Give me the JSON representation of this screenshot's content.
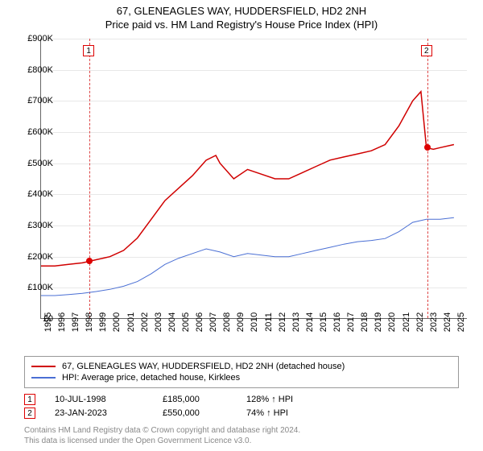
{
  "title": {
    "line1": "67, GLENEAGLES WAY, HUDDERSFIELD, HD2 2NH",
    "line2": "Price paid vs. HM Land Registry's House Price Index (HPI)"
  },
  "chart": {
    "type": "line",
    "x_range": [
      1995,
      2026
    ],
    "y_range": [
      0,
      900000
    ],
    "y_ticks": [
      0,
      100000,
      200000,
      300000,
      400000,
      500000,
      600000,
      700000,
      800000,
      900000
    ],
    "y_tick_labels": [
      "£0",
      "£100K",
      "£200K",
      "£300K",
      "£400K",
      "£500K",
      "£600K",
      "£700K",
      "£800K",
      "£900K"
    ],
    "x_ticks": [
      1995,
      1996,
      1997,
      1998,
      1999,
      2000,
      2001,
      2002,
      2003,
      2004,
      2005,
      2006,
      2007,
      2008,
      2009,
      2010,
      2011,
      2012,
      2013,
      2014,
      2015,
      2016,
      2017,
      2018,
      2019,
      2020,
      2021,
      2022,
      2023,
      2024,
      2025
    ],
    "grid_color": "#e8e8e8",
    "background_color": "#ffffff",
    "series": [
      {
        "name": "property",
        "label": "67, GLENEAGLES WAY, HUDDERSFIELD, HD2 2NH (detached house)",
        "color": "#d00000",
        "width": 1.5,
        "data": [
          [
            1995,
            170000
          ],
          [
            1996,
            170000
          ],
          [
            1997,
            175000
          ],
          [
            1998,
            180000
          ],
          [
            1998.5,
            185000
          ],
          [
            1999,
            190000
          ],
          [
            2000,
            200000
          ],
          [
            2001,
            220000
          ],
          [
            2002,
            260000
          ],
          [
            2003,
            320000
          ],
          [
            2004,
            380000
          ],
          [
            2005,
            420000
          ],
          [
            2006,
            460000
          ],
          [
            2007,
            510000
          ],
          [
            2007.7,
            525000
          ],
          [
            2008,
            500000
          ],
          [
            2009,
            450000
          ],
          [
            2010,
            480000
          ],
          [
            2011,
            465000
          ],
          [
            2012,
            450000
          ],
          [
            2013,
            450000
          ],
          [
            2014,
            470000
          ],
          [
            2015,
            490000
          ],
          [
            2016,
            510000
          ],
          [
            2017,
            520000
          ],
          [
            2018,
            530000
          ],
          [
            2019,
            540000
          ],
          [
            2020,
            560000
          ],
          [
            2021,
            620000
          ],
          [
            2022,
            700000
          ],
          [
            2022.6,
            730000
          ],
          [
            2023,
            550000
          ],
          [
            2023.5,
            545000
          ],
          [
            2024,
            550000
          ],
          [
            2025,
            560000
          ]
        ]
      },
      {
        "name": "hpi",
        "label": "HPI: Average price, detached house, Kirklees",
        "color": "#4a6fd4",
        "width": 1,
        "data": [
          [
            1995,
            75000
          ],
          [
            1996,
            75000
          ],
          [
            1997,
            78000
          ],
          [
            1998,
            82000
          ],
          [
            1999,
            88000
          ],
          [
            2000,
            95000
          ],
          [
            2001,
            105000
          ],
          [
            2002,
            120000
          ],
          [
            2003,
            145000
          ],
          [
            2004,
            175000
          ],
          [
            2005,
            195000
          ],
          [
            2006,
            210000
          ],
          [
            2007,
            225000
          ],
          [
            2008,
            215000
          ],
          [
            2009,
            200000
          ],
          [
            2010,
            210000
          ],
          [
            2011,
            205000
          ],
          [
            2012,
            200000
          ],
          [
            2013,
            200000
          ],
          [
            2014,
            210000
          ],
          [
            2015,
            220000
          ],
          [
            2016,
            230000
          ],
          [
            2017,
            240000
          ],
          [
            2018,
            248000
          ],
          [
            2019,
            252000
          ],
          [
            2020,
            258000
          ],
          [
            2021,
            280000
          ],
          [
            2022,
            310000
          ],
          [
            2023,
            320000
          ],
          [
            2024,
            320000
          ],
          [
            2025,
            325000
          ]
        ]
      }
    ],
    "sale_markers": [
      {
        "n": "1",
        "year": 1998.52,
        "price": 185000
      },
      {
        "n": "2",
        "year": 2023.06,
        "price": 550000
      }
    ],
    "vline_color": "#d44"
  },
  "legend": {
    "rows": [
      {
        "color": "#d00000",
        "label": "67, GLENEAGLES WAY, HUDDERSFIELD, HD2 2NH (detached house)"
      },
      {
        "color": "#4a6fd4",
        "label": "HPI: Average price, detached house, Kirklees"
      }
    ]
  },
  "sales": [
    {
      "n": "1",
      "date": "10-JUL-1998",
      "price": "£185,000",
      "pct": "128% ↑ HPI"
    },
    {
      "n": "2",
      "date": "23-JAN-2023",
      "price": "£550,000",
      "pct": "74% ↑ HPI"
    }
  ],
  "footer": {
    "line1": "Contains HM Land Registry data © Crown copyright and database right 2024.",
    "line2": "This data is licensed under the Open Government Licence v3.0."
  }
}
